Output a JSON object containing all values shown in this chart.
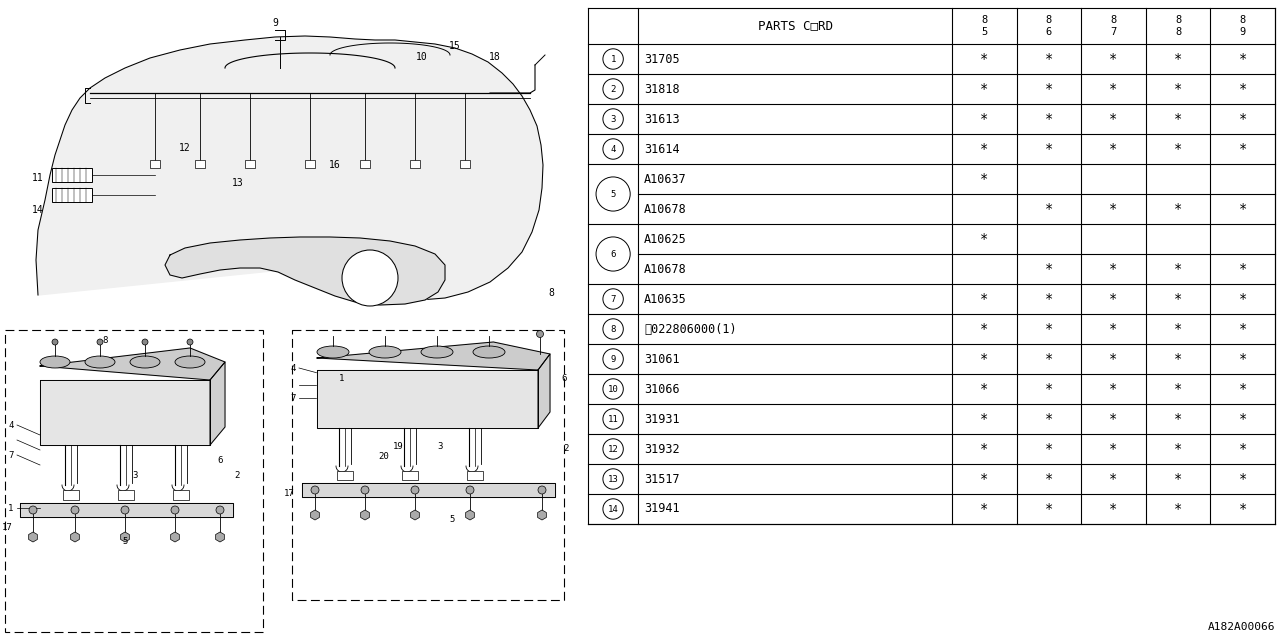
{
  "watermark": "A182A00066",
  "table": {
    "rows": [
      {
        "num": "1",
        "part": "31705",
        "marks": [
          true,
          true,
          true,
          true,
          true
        ],
        "double": false
      },
      {
        "num": "2",
        "part": "31818",
        "marks": [
          true,
          true,
          true,
          true,
          true
        ],
        "double": false
      },
      {
        "num": "3",
        "part": "31613",
        "marks": [
          true,
          true,
          true,
          true,
          true
        ],
        "double": false
      },
      {
        "num": "4",
        "part": "31614",
        "marks": [
          true,
          true,
          true,
          true,
          true
        ],
        "double": false
      },
      {
        "num": "5",
        "part": "A10637",
        "marks": [
          true,
          false,
          false,
          false,
          false
        ],
        "double": true,
        "part2": "A10678",
        "marks2": [
          false,
          true,
          true,
          true,
          true
        ]
      },
      {
        "num": "6",
        "part": "A10625",
        "marks": [
          true,
          false,
          false,
          false,
          false
        ],
        "double": true,
        "part2": "A10678",
        "marks2": [
          false,
          true,
          true,
          true,
          true
        ]
      },
      {
        "num": "7",
        "part": "A10635",
        "marks": [
          true,
          true,
          true,
          true,
          true
        ],
        "double": false
      },
      {
        "num": "8",
        "part": "ⓝ022806000(1)",
        "marks": [
          true,
          true,
          true,
          true,
          true
        ],
        "double": false
      },
      {
        "num": "9",
        "part": "31061",
        "marks": [
          true,
          true,
          true,
          true,
          true
        ],
        "double": false
      },
      {
        "num": "10",
        "part": "31066",
        "marks": [
          true,
          true,
          true,
          true,
          true
        ],
        "double": false
      },
      {
        "num": "11",
        "part": "31931",
        "marks": [
          true,
          true,
          true,
          true,
          true
        ],
        "double": false
      },
      {
        "num": "12",
        "part": "31932",
        "marks": [
          true,
          true,
          true,
          true,
          true
        ],
        "double": false
      },
      {
        "num": "13",
        "part": "31517",
        "marks": [
          true,
          true,
          true,
          true,
          true
        ],
        "double": false
      },
      {
        "num": "14",
        "part": "31941",
        "marks": [
          true,
          true,
          true,
          true,
          true
        ],
        "double": false
      }
    ]
  },
  "bg_color": "#ffffff",
  "line_color": "#000000"
}
